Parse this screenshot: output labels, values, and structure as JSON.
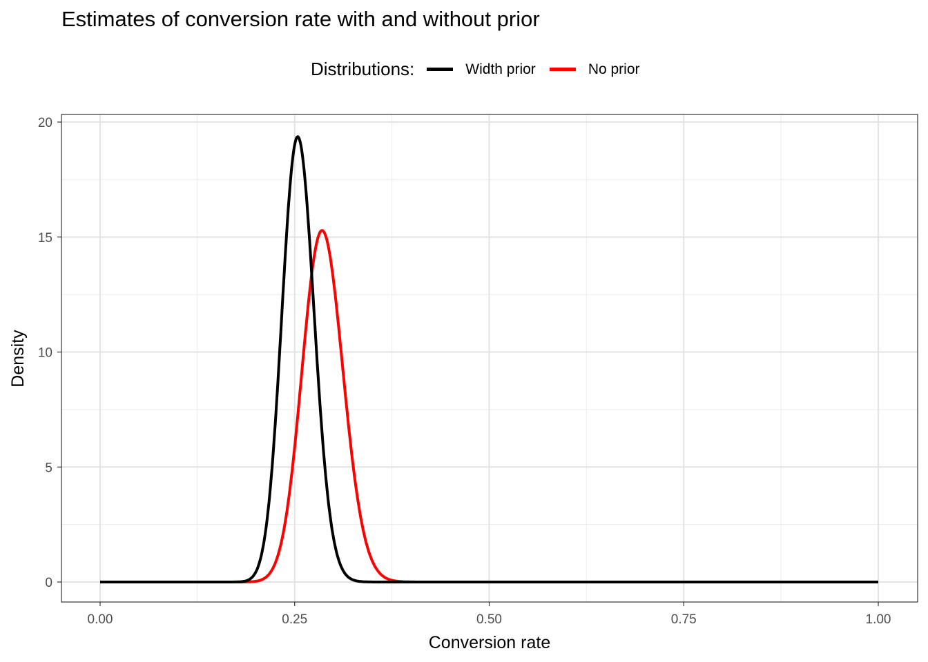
{
  "chart_data": {
    "type": "line",
    "title": "Estimates of conversion rate with and without prior",
    "xlabel": "Conversion rate",
    "ylabel": "Density",
    "xlim": [
      0,
      1
    ],
    "ylim": [
      -0.8,
      20.5
    ],
    "xticks": [
      0,
      0.25,
      0.5,
      0.75,
      1
    ],
    "xtick_labels": [
      "0.00",
      "0.25",
      "0.50",
      "0.75",
      "1.00"
    ],
    "yticks": [
      0,
      5,
      10,
      15,
      20
    ],
    "ytick_labels": [
      "0",
      "5",
      "10",
      "15",
      "20"
    ],
    "grid": true,
    "legend": {
      "title": "Distributions:",
      "placement": "top"
    },
    "series": [
      {
        "name": "Width prior",
        "color": "#000000",
        "distribution": "beta",
        "alpha": 114,
        "beta": 333,
        "mode": 0.254,
        "peak_density": 19.4
      },
      {
        "name": "No prior",
        "color": "#ff0000",
        "distribution": "beta",
        "alpha": 86,
        "beta": 214,
        "mode": 0.285,
        "peak_density": 15.3
      }
    ]
  }
}
